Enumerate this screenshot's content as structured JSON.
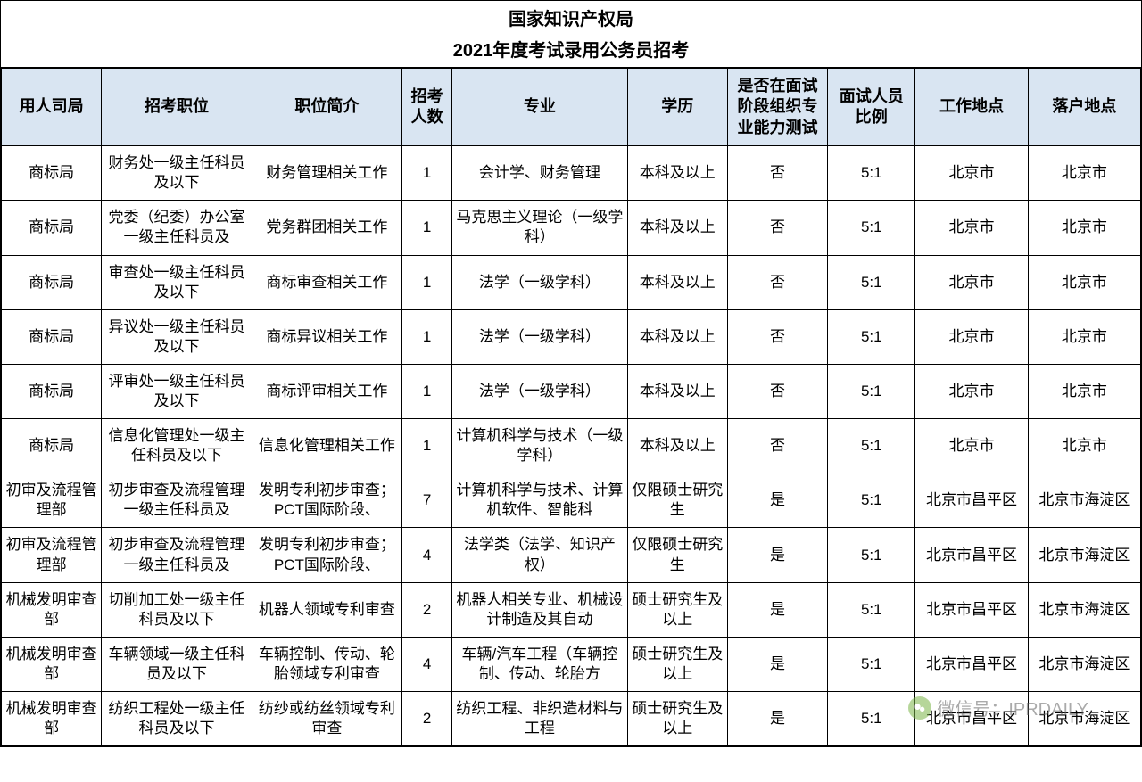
{
  "title": "国家知识产权局",
  "subtitle": "2021年度考试录用公务员招考",
  "columns": [
    "用人司局",
    "招考职位",
    "职位简介",
    "招考人数",
    "专业",
    "学历",
    "是否在面试阶段组织专业能力测试",
    "面试人员比例",
    "工作地点",
    "落户地点"
  ],
  "rows": [
    [
      "商标局",
      "财务处一级主任科员及以下",
      "财务管理相关工作",
      "1",
      "会计学、财务管理",
      "本科及以上",
      "否",
      "5:1",
      "北京市",
      "北京市"
    ],
    [
      "商标局",
      "党委（纪委）办公室一级主任科员及",
      "党务群团相关工作",
      "1",
      "马克思主义理论（一级学科）",
      "本科及以上",
      "否",
      "5:1",
      "北京市",
      "北京市"
    ],
    [
      "商标局",
      "审查处一级主任科员及以下",
      "商标审查相关工作",
      "1",
      "法学（一级学科）",
      "本科及以上",
      "否",
      "5:1",
      "北京市",
      "北京市"
    ],
    [
      "商标局",
      "异议处一级主任科员及以下",
      "商标异议相关工作",
      "1",
      "法学（一级学科）",
      "本科及以上",
      "否",
      "5:1",
      "北京市",
      "北京市"
    ],
    [
      "商标局",
      "评审处一级主任科员及以下",
      "商标评审相关工作",
      "1",
      "法学（一级学科）",
      "本科及以上",
      "否",
      "5:1",
      "北京市",
      "北京市"
    ],
    [
      "商标局",
      "信息化管理处一级主任科员及以下",
      "信息化管理相关工作",
      "1",
      "计算机科学与技术（一级学科）",
      "本科及以上",
      "否",
      "5:1",
      "北京市",
      "北京市"
    ],
    [
      "初审及流程管理部",
      "初步审查及流程管理一级主任科员及",
      "发明专利初步审查；PCT国际阶段、",
      "7",
      "计算机科学与技术、计算机软件、智能科",
      "仅限硕士研究生",
      "是",
      "5:1",
      "北京市昌平区",
      "北京市海淀区"
    ],
    [
      "初审及流程管理部",
      "初步审查及流程管理一级主任科员及",
      "发明专利初步审查；PCT国际阶段、",
      "4",
      "法学类（法学、知识产权）",
      "仅限硕士研究生",
      "是",
      "5:1",
      "北京市昌平区",
      "北京市海淀区"
    ],
    [
      "机械发明审查部",
      "切削加工处一级主任科员及以下",
      "机器人领域专利审查",
      "2",
      "机器人相关专业、机械设计制造及其自动",
      "硕士研究生及以上",
      "是",
      "5:1",
      "北京市昌平区",
      "北京市海淀区"
    ],
    [
      "机械发明审查部",
      "车辆领域一级主任科员及以下",
      "车辆控制、传动、轮胎领域专利审查",
      "4",
      "车辆/汽车工程（车辆控制、传动、轮胎方",
      "硕士研究生及以上",
      "是",
      "5:1",
      "北京市昌平区",
      "北京市海淀区"
    ],
    [
      "机械发明审查部",
      "纺织工程处一级主任科员及以下",
      "纺纱或纺丝领域专利审查",
      "2",
      "纺织工程、非织造材料与工程",
      "硕士研究生及以上",
      "是",
      "5:1",
      "北京市昌平区",
      "北京市海淀区"
    ]
  ],
  "watermark": {
    "text": "微信号：IPRDAILY",
    "icon": "●"
  },
  "styling": {
    "header_bg": "#d9e5f2",
    "border_color": "#000000",
    "title_fontsize": 20,
    "header_fontsize": 18,
    "cell_fontsize": 17,
    "column_widths_pct": [
      8,
      12,
      12,
      4,
      14,
      8,
      8,
      7,
      9,
      9
    ]
  }
}
